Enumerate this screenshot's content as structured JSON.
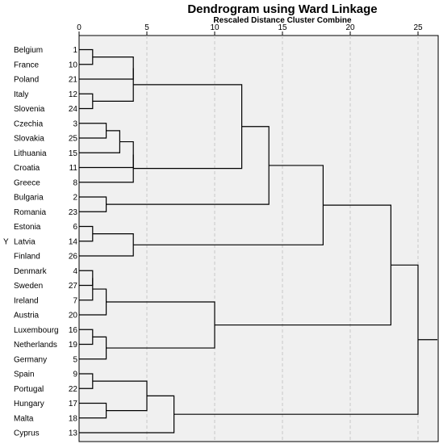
{
  "chart_data": {
    "type": "dendrogram",
    "title": "Dendrogram using Ward Linkage",
    "subtitle": "Rescaled Distance Cluster Combine",
    "ylabel": "Y",
    "xlim": [
      0,
      25
    ],
    "x_ticks": [
      0,
      5,
      10,
      15,
      20,
      25
    ],
    "grid": "vertical dashed",
    "leaves": [
      {
        "name": "Belgium",
        "id": 1
      },
      {
        "name": "France",
        "id": 10
      },
      {
        "name": "Poland",
        "id": 21
      },
      {
        "name": "Italy",
        "id": 12
      },
      {
        "name": "Slovenia",
        "id": 24
      },
      {
        "name": "Czechia",
        "id": 3
      },
      {
        "name": "Slovakia",
        "id": 25
      },
      {
        "name": "Lithuania",
        "id": 15
      },
      {
        "name": "Croatia",
        "id": 11
      },
      {
        "name": "Greece",
        "id": 8
      },
      {
        "name": "Bulgaria",
        "id": 2
      },
      {
        "name": "Romania",
        "id": 23
      },
      {
        "name": "Estonia",
        "id": 6
      },
      {
        "name": "Latvia",
        "id": 14
      },
      {
        "name": "Finland",
        "id": 26
      },
      {
        "name": "Denmark",
        "id": 4
      },
      {
        "name": "Sweden",
        "id": 27
      },
      {
        "name": "Ireland",
        "id": 7
      },
      {
        "name": "Austria",
        "id": 20
      },
      {
        "name": "Luxembourg",
        "id": 16
      },
      {
        "name": "Netherlands",
        "id": 19
      },
      {
        "name": "Germany",
        "id": 5
      },
      {
        "name": "Spain",
        "id": 9
      },
      {
        "name": "Portugal",
        "id": 22
      },
      {
        "name": "Hungary",
        "id": 17
      },
      {
        "name": "Malta",
        "id": 18
      },
      {
        "name": "Cyprus",
        "id": 13
      }
    ],
    "merges": [
      {
        "a": "L0",
        "b": "L1",
        "h": 1.0
      },
      {
        "a": "L3",
        "b": "L4",
        "h": 1.0
      },
      {
        "a": "L12",
        "b": "L13",
        "h": 1.0
      },
      {
        "a": "L15",
        "b": "L16",
        "h": 1.0
      },
      {
        "a": "L19",
        "b": "L20",
        "h": 1.0
      },
      {
        "a": "L22",
        "b": "L23",
        "h": 1.0
      },
      {
        "a": "L5",
        "b": "L6",
        "h": 2.0
      },
      {
        "a": "L10",
        "b": "L11",
        "h": 2.0
      },
      {
        "a": "M3",
        "b": "L17",
        "h": 1.0
      },
      {
        "a": "M8",
        "b": "L18",
        "h": 2.0
      },
      {
        "a": "M4",
        "b": "L21",
        "h": 2.0
      },
      {
        "a": "L24",
        "b": "L25",
        "h": 2.0
      },
      {
        "a": "M6",
        "b": "L7",
        "h": 3.0
      },
      {
        "a": "M12",
        "b": "L8",
        "h": 4.0
      },
      {
        "a": "M13",
        "b": "L9",
        "h": 4.0
      },
      {
        "a": "M0",
        "b": "L2",
        "h": 4.0
      },
      {
        "a": "M15",
        "b": "M1",
        "h": 4.0
      },
      {
        "a": "M2",
        "b": "L14",
        "h": 4.0
      },
      {
        "a": "M5",
        "b": "M11",
        "h": 5.0
      },
      {
        "a": "M18",
        "b": "L26",
        "h": 7.0
      },
      {
        "a": "M9",
        "b": "M10",
        "h": 10.0
      },
      {
        "a": "M16",
        "b": "M14",
        "h": 12.0
      },
      {
        "a": "M21",
        "b": "M7",
        "h": 14.0
      },
      {
        "a": "M22",
        "b": "M17",
        "h": 18.0
      },
      {
        "a": "M23",
        "b": "M20",
        "h": 23.0
      },
      {
        "a": "M24",
        "b": "M19",
        "h": 25.0
      }
    ]
  }
}
